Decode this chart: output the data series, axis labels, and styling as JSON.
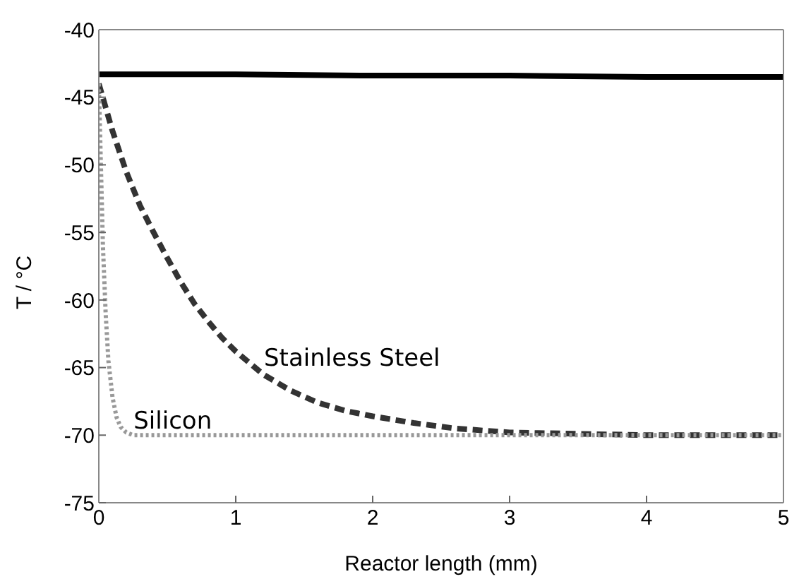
{
  "chart_data": {
    "type": "line",
    "xlabel": "Reactor length (mm)",
    "ylabel": "T / °C",
    "xlim": [
      0,
      5
    ],
    "xticks": [
      0,
      1,
      2,
      3,
      4,
      5
    ],
    "ylim": [
      -75,
      -40
    ],
    "yticks": [
      -75,
      -70,
      -65,
      -60,
      -55,
      -50,
      -45,
      -40
    ],
    "marker": "none",
    "series": [
      {
        "color": "#000000",
        "line_style": "solid",
        "x": [
          0,
          1,
          2,
          3,
          4,
          5
        ],
        "values": [
          -43.3,
          -43.3,
          -43.4,
          -43.4,
          -43.5,
          -43.5
        ]
      },
      {
        "name": "Stainless Steel",
        "color": "#333333",
        "line_style": "dashed",
        "x": [
          0,
          0.1,
          0.2,
          0.3,
          0.4,
          0.5,
          0.6,
          0.7,
          0.8,
          0.9,
          1,
          1.2,
          1.4,
          1.6,
          1.8,
          2,
          2.3,
          2.6,
          3,
          3.5,
          4,
          4.5,
          5
        ],
        "values": [
          -44,
          -47.5,
          -50.5,
          -53,
          -55,
          -56.9,
          -58.7,
          -60.3,
          -61.6,
          -62.8,
          -63.8,
          -65.5,
          -66.7,
          -67.6,
          -68.2,
          -68.6,
          -69.1,
          -69.5,
          -69.8,
          -69.9,
          -70,
          -70,
          -70
        ]
      },
      {
        "name": "Silicon",
        "color": "#999999",
        "line_style": "dotted",
        "x": [
          0,
          0.01,
          0.02,
          0.03,
          0.05,
          0.07,
          0.1,
          0.13,
          0.16,
          0.2,
          0.25,
          0.3,
          1,
          2,
          3,
          4,
          5
        ],
        "values": [
          -44,
          -48,
          -52,
          -56,
          -61,
          -64.5,
          -67.2,
          -68.7,
          -69.4,
          -69.8,
          -70,
          -70,
          -70,
          -70,
          -70,
          -70,
          -70
        ]
      }
    ]
  }
}
